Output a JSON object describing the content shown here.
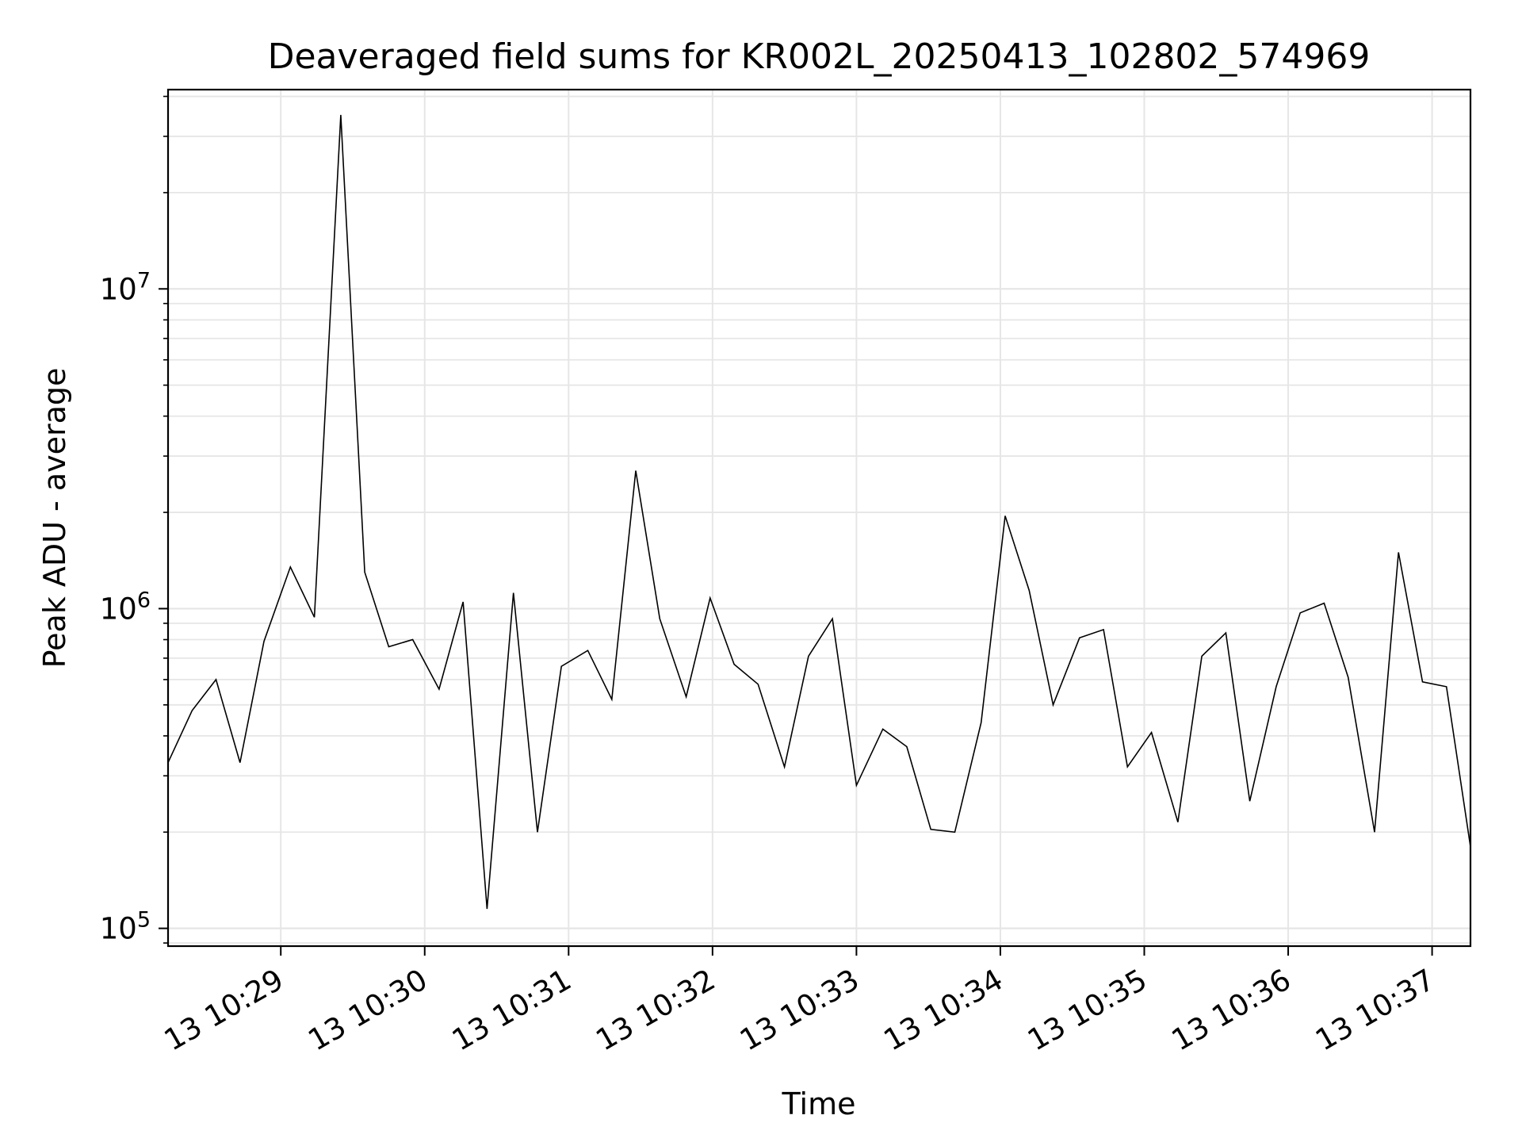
{
  "chart_data": {
    "type": "line",
    "title": "Deaveraged field sums for KR002L_20250413_102802_574969",
    "xlabel": "Time",
    "ylabel": "Peak ADU - average",
    "yscale": "log",
    "grid": true,
    "line_color": "#000000",
    "grid_color": "#e6e6e6",
    "xlim": [
      "2025-04-13 10:28:13",
      "2025-04-13 10:37:16"
    ],
    "ylim": [
      88000,
      42000000
    ],
    "x_ticks": [
      {
        "value": "2025-04-13 10:29:00",
        "label": "13 10:29"
      },
      {
        "value": "2025-04-13 10:30:00",
        "label": "13 10:30"
      },
      {
        "value": "2025-04-13 10:31:00",
        "label": "13 10:31"
      },
      {
        "value": "2025-04-13 10:32:00",
        "label": "13 10:32"
      },
      {
        "value": "2025-04-13 10:33:00",
        "label": "13 10:33"
      },
      {
        "value": "2025-04-13 10:34:00",
        "label": "13 10:34"
      },
      {
        "value": "2025-04-13 10:35:00",
        "label": "13 10:35"
      },
      {
        "value": "2025-04-13 10:36:00",
        "label": "13 10:36"
      },
      {
        "value": "2025-04-13 10:37:00",
        "label": "13 10:37"
      }
    ],
    "y_ticks": [
      {
        "value": 100000,
        "base": "10",
        "exp": "5"
      },
      {
        "value": 1000000,
        "base": "10",
        "exp": "6"
      },
      {
        "value": 10000000,
        "base": "10",
        "exp": "7"
      }
    ],
    "x": [
      "2025-04-13 10:28:13",
      "2025-04-13 10:28:23",
      "2025-04-13 10:28:33",
      "2025-04-13 10:28:43",
      "2025-04-13 10:28:53",
      "2025-04-13 10:29:04",
      "2025-04-13 10:29:14",
      "2025-04-13 10:29:25",
      "2025-04-13 10:29:35",
      "2025-04-13 10:29:45",
      "2025-04-13 10:29:55",
      "2025-04-13 10:30:06",
      "2025-04-13 10:30:16",
      "2025-04-13 10:30:26",
      "2025-04-13 10:30:37",
      "2025-04-13 10:30:47",
      "2025-04-13 10:30:57",
      "2025-04-13 10:31:08",
      "2025-04-13 10:31:18",
      "2025-04-13 10:31:28",
      "2025-04-13 10:31:38",
      "2025-04-13 10:31:49",
      "2025-04-13 10:31:59",
      "2025-04-13 10:32:09",
      "2025-04-13 10:32:19",
      "2025-04-13 10:32:30",
      "2025-04-13 10:32:40",
      "2025-04-13 10:32:50",
      "2025-04-13 10:33:00",
      "2025-04-13 10:33:11",
      "2025-04-13 10:33:21",
      "2025-04-13 10:33:31",
      "2025-04-13 10:33:41",
      "2025-04-13 10:33:52",
      "2025-04-13 10:34:02",
      "2025-04-13 10:34:12",
      "2025-04-13 10:34:22",
      "2025-04-13 10:34:33",
      "2025-04-13 10:34:43",
      "2025-04-13 10:34:53",
      "2025-04-13 10:35:03",
      "2025-04-13 10:35:14",
      "2025-04-13 10:35:24",
      "2025-04-13 10:35:34",
      "2025-04-13 10:35:44",
      "2025-04-13 10:35:55",
      "2025-04-13 10:36:05",
      "2025-04-13 10:36:15",
      "2025-04-13 10:36:25",
      "2025-04-13 10:36:36",
      "2025-04-13 10:36:46",
      "2025-04-13 10:36:56",
      "2025-04-13 10:37:06",
      "2025-04-13 10:37:16"
    ],
    "values": [
      330000,
      480000,
      600000,
      330000,
      790000,
      1350000,
      940000,
      35000000,
      1300000,
      760000,
      800000,
      560000,
      1050000,
      115000,
      1120000,
      200000,
      660000,
      740000,
      520000,
      2700000,
      930000,
      530000,
      1080000,
      670000,
      580000,
      320000,
      710000,
      930000,
      280000,
      420000,
      370000,
      204000,
      200000,
      440000,
      1950000,
      1140000,
      500000,
      810000,
      860000,
      320000,
      410000,
      215000,
      710000,
      840000,
      250000,
      570000,
      970000,
      1040000,
      610000,
      200000,
      1500000,
      590000,
      570000,
      180000
    ]
  }
}
